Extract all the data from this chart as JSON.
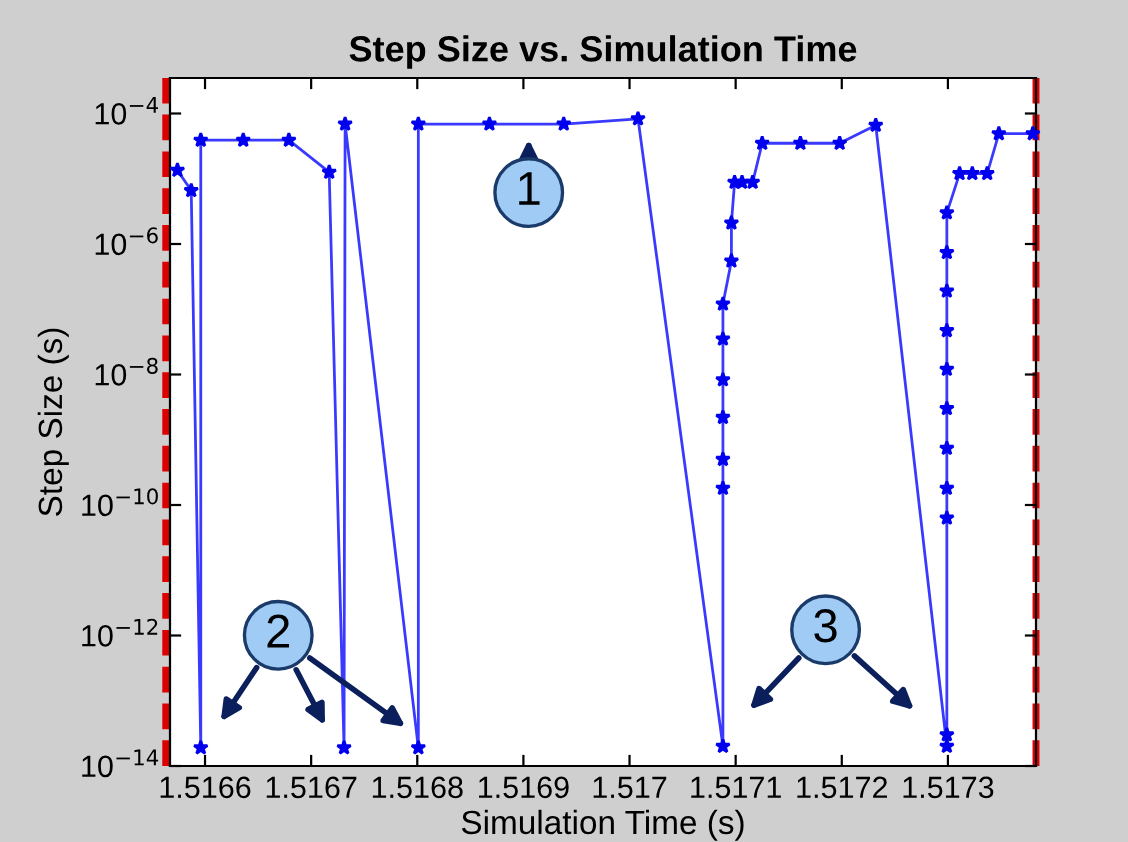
{
  "chart_data": {
    "type": "line",
    "title": "Step Size vs. Simulation Time",
    "xlabel": "Simulation Time (s)",
    "ylabel": "Step Size (s)",
    "log": "y",
    "marker": "star",
    "line_style": "solid",
    "grid": false,
    "xlim": [
      1.516567,
      1.517383
    ],
    "ylim": [
      1e-14,
      0.00035
    ],
    "xticks": [
      1.5166,
      1.5167,
      1.5168,
      1.5169,
      1.517,
      1.5171,
      1.5172,
      1.5173
    ],
    "yticks": [
      {
        "value": 1e-14,
        "label": "10$^{−14}$"
      },
      {
        "value": 1e-12,
        "label": "10$^{−12}$"
      },
      {
        "value": 1e-10,
        "label": "10$^{−10}$"
      },
      {
        "value": 1e-08,
        "label": "10$^{−8}$"
      },
      {
        "value": 1e-06,
        "label": "10$^{−6}$"
      },
      {
        "value": 0.0001,
        "label": "10$^{−4}$"
      }
    ],
    "ref_lines": [
      {
        "axis": "x",
        "value": 1.516563,
        "color": "#dd0000",
        "line_style": "dashed"
      },
      {
        "axis": "x",
        "value": 1.517383,
        "color": "#dd0000",
        "line_style": "dashed"
      }
    ],
    "annotations": [
      {
        "text": "1",
        "x": 1.516905,
        "y": 6.9e-05
      },
      "2",
      "3"
    ],
    "series": [
      {
        "color": "#3a3aff",
        "x": [
          1.516574,
          1.516587,
          1.516596,
          1.516596,
          1.516636,
          1.516679,
          1.516717,
          1.516731,
          1.516732,
          1.516801,
          1.516801,
          1.516868,
          1.516938,
          1.517008,
          1.517088,
          1.517088,
          1.517088,
          1.517088,
          1.517088,
          1.517088,
          1.517088,
          1.517096,
          1.517096,
          1.517099,
          1.517106,
          1.517116,
          1.517125,
          1.517161,
          1.517198,
          1.517232,
          1.517299,
          1.517299,
          1.517299,
          1.517299,
          1.517299,
          1.517299,
          1.517299,
          1.517299,
          1.517299,
          1.517299,
          1.517299,
          1.517311,
          1.517323,
          1.517337,
          1.517348,
          1.51738
        ],
        "values": [
          1.35e-05,
          6.6e-06,
          1.9e-14,
          3.9e-05,
          3.9e-05,
          3.9e-05,
          1.26e-05,
          1.9e-14,
          6.9e-05,
          1.9e-14,
          6.9e-05,
          6.9e-05,
          6.9e-05,
          8.3e-05,
          2e-14,
          1.8e-10,
          5e-10,
          2.2e-09,
          8.3e-09,
          3.5e-08,
          1.2e-07,
          5.5e-07,
          2.1e-06,
          8.8e-06,
          8.8e-06,
          8.8e-06,
          3.5e-05,
          3.5e-05,
          3.5e-05,
          6.6e-05,
          2e-14,
          3e-14,
          6.3e-11,
          1.8e-10,
          7.4e-10,
          3e-09,
          1.2e-08,
          4.7e-08,
          1.9e-07,
          7.4e-07,
          3e-06,
          1.2e-05,
          1.2e-05,
          1.2e-05,
          4.9e-05,
          4.9e-05
        ]
      }
    ]
  }
}
